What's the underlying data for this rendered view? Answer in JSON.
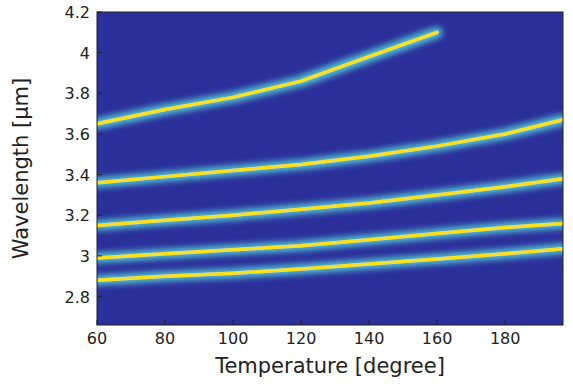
{
  "chart_data": {
    "type": "line",
    "x_label": "Temperature [degree]",
    "y_label": "Wavelength [μm]",
    "x": [
      60,
      80,
      100,
      120,
      140,
      160,
      180,
      197
    ],
    "series": [
      {
        "color": "#f9e21c",
        "values": [
          2.88,
          2.9,
          2.915,
          2.935,
          2.96,
          2.985,
          3.01,
          3.035
        ]
      },
      {
        "color": "#f9e21c",
        "values": [
          2.99,
          3.01,
          3.03,
          3.05,
          3.08,
          3.11,
          3.14,
          3.16
        ]
      },
      {
        "color": "#f9e21c",
        "values": [
          3.15,
          3.175,
          3.2,
          3.23,
          3.26,
          3.3,
          3.34,
          3.38
        ]
      },
      {
        "color": "#f9e21c",
        "values": [
          3.36,
          3.39,
          3.42,
          3.45,
          3.49,
          3.54,
          3.6,
          3.67
        ]
      },
      {
        "color": "#f9e21c",
        "values": [
          3.65,
          3.72,
          3.78,
          3.86,
          3.98,
          4.1,
          null,
          null
        ]
      }
    ],
    "xlim": [
      60,
      197
    ],
    "ylim": [
      2.66,
      4.2
    ],
    "xticks": [
      60,
      80,
      100,
      120,
      140,
      160,
      180
    ],
    "yticks": [
      2.8,
      3,
      3.2,
      3.4,
      3.6,
      3.8,
      4,
      4.2
    ],
    "grid": false
  }
}
